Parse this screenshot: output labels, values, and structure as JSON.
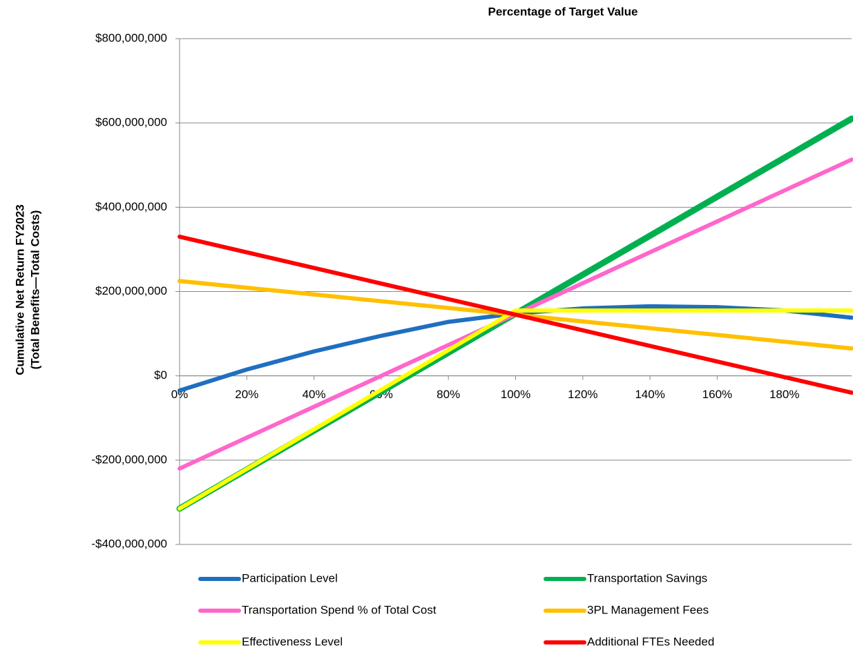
{
  "chart_data": {
    "type": "line",
    "title": "Percentage of Target Value",
    "y_label": [
      "Cumulative Net Return FY2023",
      "(Total Benefits—Total Costs)"
    ],
    "x": [
      0,
      20,
      40,
      60,
      80,
      100,
      120,
      140,
      160,
      180,
      200
    ],
    "xlim": [
      0,
      200
    ],
    "xticks": [
      {
        "value": 0,
        "label": "0%"
      },
      {
        "value": 20,
        "label": "20%"
      },
      {
        "value": 40,
        "label": "40%"
      },
      {
        "value": 60,
        "label": "60%"
      },
      {
        "value": 80,
        "label": "80%"
      },
      {
        "value": 100,
        "label": "100%"
      },
      {
        "value": 120,
        "label": "120%"
      },
      {
        "value": 140,
        "label": "140%"
      },
      {
        "value": 160,
        "label": "160%"
      },
      {
        "value": 180,
        "label": "180%"
      }
    ],
    "ylim": [
      -400000000,
      800000000
    ],
    "yticks": [
      {
        "value": -400000000,
        "label": "-$400,000,000"
      },
      {
        "value": -200000000,
        "label": "-$200,000,000"
      },
      {
        "value": 0,
        "label": "$0"
      },
      {
        "value": 200000000,
        "label": "$200,000,000"
      },
      {
        "value": 400000000,
        "label": "$400,000,000"
      },
      {
        "value": 600000000,
        "label": "$600,000,000"
      },
      {
        "value": 800000000,
        "label": "$800,000,000"
      }
    ],
    "grid": true,
    "legend": "bottom",
    "series": [
      {
        "name": "Participation Level",
        "color": "#1f6fbf",
        "values": [
          -35000000,
          15000000,
          58000000,
          95000000,
          128000000,
          148000000,
          160000000,
          165000000,
          163000000,
          155000000,
          138000000
        ]
      },
      {
        "name": "Transportation Savings",
        "color": "#00b050",
        "values": [
          -315000000,
          -222500000,
          -130000000,
          -37500000,
          55000000,
          147500000,
          240000000,
          332500000,
          425000000,
          517500000,
          610000000
        ]
      },
      {
        "name": "Transportation Spend % of Total Cost",
        "color": "#ff66cc",
        "values": [
          -220000000,
          -146700000,
          -73400000,
          -100000,
          73200000,
          146500000,
          219800000,
          293100000,
          366400000,
          439700000,
          513000000
        ]
      },
      {
        "name": "3PL Management Fees",
        "color": "#ffc000",
        "values": [
          225000000,
          209000000,
          193000000,
          177000000,
          161000000,
          145000000,
          129000000,
          113000000,
          97000000,
          81000000,
          65000000
        ]
      },
      {
        "name": "Effectiveness Level",
        "color": "#ffff00",
        "values": [
          -315000000,
          -221000000,
          -127000000,
          -33000000,
          61000000,
          155000000,
          155000000,
          155000000,
          155000000,
          155000000,
          155000000
        ]
      },
      {
        "name": "Additional FTEs Needed",
        "color": "#ff0000",
        "values": [
          330000000,
          293000000,
          256000000,
          219000000,
          182000000,
          145000000,
          108000000,
          71000000,
          34000000,
          -3000000,
          -40000000
        ]
      }
    ]
  }
}
